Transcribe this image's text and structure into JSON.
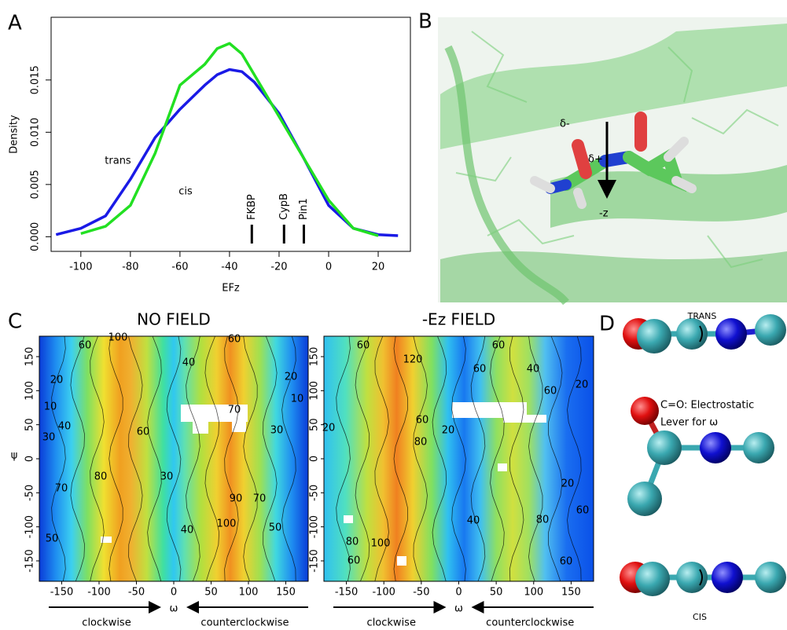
{
  "panel_labels": [
    "A",
    "B",
    "C",
    "D"
  ],
  "chart_data": [
    {
      "type": "line",
      "xlabel": "EFz",
      "ylabel": "Density",
      "x": [
        -110,
        -100,
        -90,
        -80,
        -70,
        -60,
        -50,
        -45,
        -40,
        -35,
        -30,
        -20,
        -10,
        0,
        10,
        20,
        28
      ],
      "series": [
        {
          "name": "trans",
          "color": "#1a1ae6",
          "values": [
            0.0002,
            0.0008,
            0.002,
            0.0055,
            0.0095,
            0.0122,
            0.0145,
            0.0155,
            0.016,
            0.0158,
            0.0148,
            0.0118,
            0.0075,
            0.003,
            0.0008,
            0.0002,
            0.0001
          ]
        },
        {
          "name": "cis",
          "color": "#22e022",
          "values": [
            null,
            0.0003,
            0.001,
            0.003,
            0.008,
            0.0145,
            0.0165,
            0.018,
            0.0185,
            0.0175,
            0.0155,
            0.0115,
            0.0075,
            0.0035,
            0.0008,
            0.0001,
            null
          ]
        }
      ],
      "markers": [
        {
          "label": "FKBP",
          "x": -31
        },
        {
          "label": "CypB",
          "x": -18
        },
        {
          "label": "Pin1",
          "x": -10
        }
      ],
      "xlim": [
        -112,
        33
      ],
      "xticks": [
        -100,
        -80,
        -60,
        -40,
        -20,
        0,
        20
      ],
      "ylim": [
        -0.0014,
        0.021
      ],
      "yticks": [
        {
          "value": 0,
          "label": "0.000"
        },
        {
          "value": 0.005,
          "label": "0.005"
        },
        {
          "value": 0.01,
          "label": "0.010"
        },
        {
          "value": 0.015,
          "label": "0.015"
        }
      ]
    },
    {
      "type": "heatmap",
      "title": "NO FIELD",
      "xlabel": "ω",
      "ylabel": "ψ",
      "xlim": [
        -180,
        180
      ],
      "xticks": [
        -150,
        -100,
        -50,
        0,
        50,
        100,
        150
      ],
      "ylim": [
        -180,
        180
      ],
      "yticks": [
        -150,
        -100,
        -50,
        0,
        50,
        100,
        150
      ],
      "contour_labels": [
        20,
        10,
        30,
        40,
        60,
        80,
        70,
        50,
        100,
        40,
        60,
        30,
        40,
        60,
        70,
        90,
        100,
        70,
        50,
        20,
        10,
        30
      ],
      "annotations": [
        "clockwise",
        "counterclockwise"
      ]
    },
    {
      "type": "heatmap",
      "title": "-Ez FIELD",
      "xlabel": "ω",
      "xlim": [
        -180,
        180
      ],
      "xticks": [
        -150,
        -100,
        -50,
        0,
        50,
        100,
        150
      ],
      "ylim": [
        -180,
        180
      ],
      "yticks": [
        -150,
        -100,
        -50,
        0,
        50,
        100,
        150
      ],
      "contour_labels": [
        60,
        120,
        60,
        80,
        20,
        20,
        40,
        60,
        60,
        40,
        60,
        20,
        20,
        60,
        80,
        60,
        100,
        80,
        60
      ],
      "annotations": [
        "clockwise",
        "counterclockwise"
      ]
    }
  ],
  "panel_b": {
    "labels": [
      "δ-",
      "δ+",
      "-z"
    ]
  },
  "panel_d": {
    "labels": [
      "TRANS",
      "C=O: Electrostatic",
      "Lever for ω",
      "CIS"
    ]
  }
}
